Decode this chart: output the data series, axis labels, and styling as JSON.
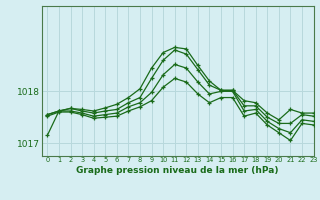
{
  "title": "Graphe pression niveau de la mer (hPa)",
  "background_color": "#d6eef2",
  "grid_color": "#b8d8dc",
  "line_color": "#1a6b1a",
  "spine_color": "#4a7a4a",
  "xlim": [
    -0.5,
    23
  ],
  "ylim": [
    1016.75,
    1019.65
  ],
  "yticks": [
    1017,
    1018
  ],
  "xticks": [
    0,
    1,
    2,
    3,
    4,
    5,
    6,
    7,
    8,
    9,
    10,
    11,
    12,
    13,
    14,
    15,
    16,
    17,
    18,
    19,
    20,
    21,
    22,
    23
  ],
  "series": [
    [
      1017.15,
      1017.62,
      1017.67,
      1017.65,
      1017.62,
      1017.68,
      1017.75,
      1017.88,
      1018.05,
      1018.45,
      1018.75,
      1018.85,
      1018.82,
      1018.5,
      1018.2,
      1018.02,
      1018.02,
      1017.82,
      1017.78,
      1017.58,
      1017.45,
      1017.65,
      1017.58,
      1017.58
    ],
    [
      1017.55,
      1017.62,
      1017.67,
      1017.62,
      1017.58,
      1017.62,
      1017.65,
      1017.78,
      1017.88,
      1018.25,
      1018.6,
      1018.8,
      1018.72,
      1018.42,
      1018.12,
      1018.02,
      1018.02,
      1017.72,
      1017.72,
      1017.5,
      1017.38,
      1017.38,
      1017.55,
      1017.52
    ],
    [
      1017.55,
      1017.62,
      1017.62,
      1017.58,
      1017.52,
      1017.55,
      1017.58,
      1017.7,
      1017.78,
      1017.98,
      1018.32,
      1018.52,
      1018.45,
      1018.18,
      1017.95,
      1018.0,
      1018.0,
      1017.62,
      1017.65,
      1017.42,
      1017.28,
      1017.2,
      1017.45,
      1017.42
    ],
    [
      1017.52,
      1017.6,
      1017.6,
      1017.55,
      1017.48,
      1017.5,
      1017.52,
      1017.62,
      1017.7,
      1017.82,
      1018.08,
      1018.25,
      1018.18,
      1017.95,
      1017.78,
      1017.88,
      1017.88,
      1017.52,
      1017.58,
      1017.35,
      1017.2,
      1017.05,
      1017.38,
      1017.35
    ]
  ]
}
